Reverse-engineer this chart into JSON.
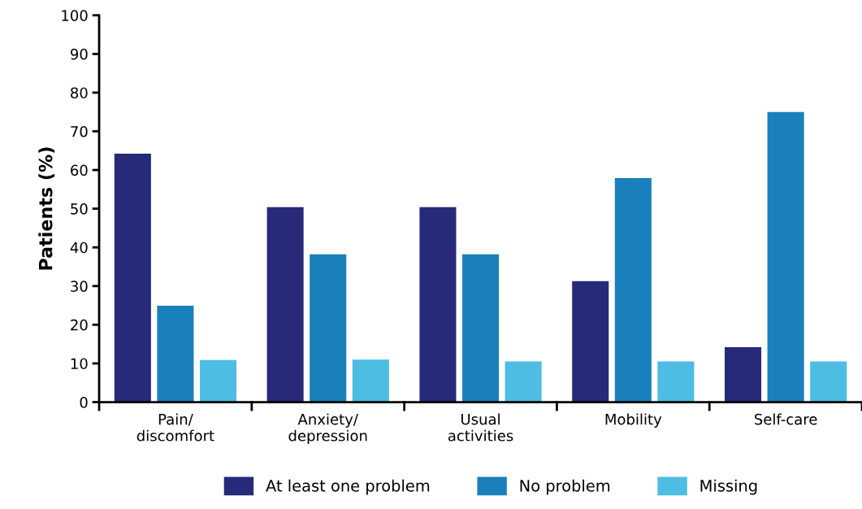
{
  "chart_data": {
    "type": "bar",
    "ylabel": "Patients (%)",
    "categories": [
      "Pain/\ndiscomfort",
      "Anxiety/\ndepression",
      "Usual\nactivities",
      "Mobility",
      "Self-care"
    ],
    "series": [
      {
        "name": "At least one problem",
        "color": "#262a78",
        "values": [
          64.2,
          50.4,
          50.4,
          31.3,
          14.2
        ]
      },
      {
        "name": "No problem",
        "color": "#1a80bb",
        "values": [
          24.9,
          38.2,
          38.2,
          57.9,
          75.0
        ]
      },
      {
        "name": "Missing",
        "color": "#4dbde3",
        "values": [
          10.9,
          11.0,
          10.5,
          10.5,
          10.5
        ]
      }
    ],
    "ylim": [
      0,
      100
    ],
    "yticks": [
      0,
      10,
      20,
      30,
      40,
      50,
      60,
      70,
      80,
      90,
      100
    ],
    "grid": false,
    "legend": "bottom"
  }
}
